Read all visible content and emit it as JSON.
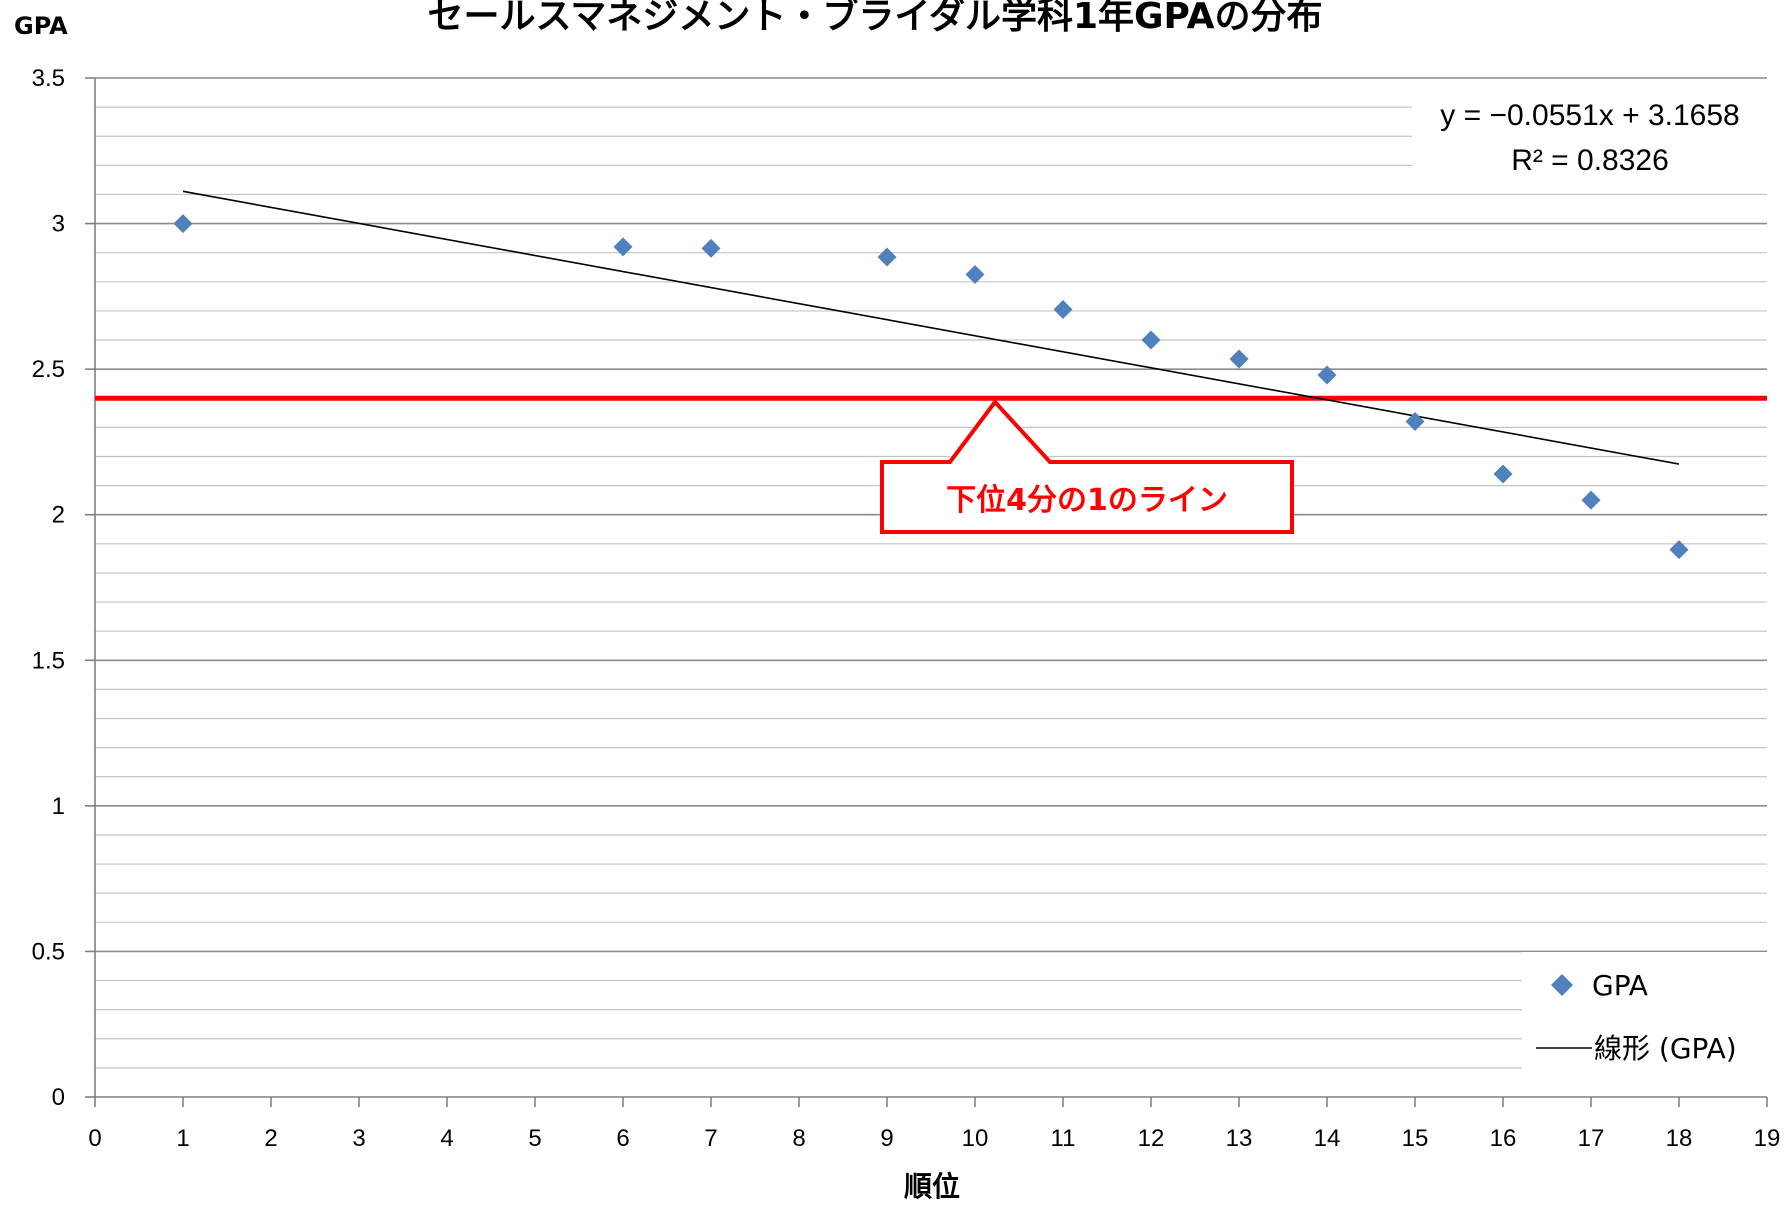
{
  "chart_data": {
    "type": "scatter",
    "title": "セールスマネジメント・ブライダル学科1年GPAの分布",
    "xlabel": "順位",
    "ylabel": "GPA",
    "xlim": [
      0,
      19
    ],
    "ylim": [
      0,
      3.5
    ],
    "x_ticks": [
      "0",
      "1",
      "2",
      "3",
      "4",
      "5",
      "6",
      "7",
      "8",
      "9",
      "10",
      "11",
      "12",
      "13",
      "14",
      "15",
      "16",
      "17",
      "18",
      "19"
    ],
    "y_ticks": [
      "0",
      "0.5",
      "1",
      "1.5",
      "2",
      "2.5",
      "3",
      "3.5"
    ],
    "grid": true,
    "series": [
      {
        "name": "GPA",
        "marker": "diamond",
        "color": "#4f81bd",
        "x": [
          1,
          6,
          7,
          9,
          10,
          11,
          12,
          13,
          14,
          15,
          16,
          17,
          18
        ],
        "y": [
          3.0,
          2.92,
          2.915,
          2.885,
          2.825,
          2.705,
          2.6,
          2.535,
          2.48,
          2.32,
          2.14,
          2.05,
          1.88
        ]
      }
    ],
    "trendline": {
      "name": "線形 (GPA)",
      "type": "linear",
      "slope": -0.0551,
      "intercept": 3.1658,
      "x_range": [
        1,
        18
      ],
      "color": "#000000",
      "equation_label": "y = −0.0551x + 3.1658",
      "r2_label": "R² = 0.8326"
    },
    "reference_line": {
      "y": 2.4,
      "color": "#ff0000",
      "label": "下位4分の1のライン"
    },
    "legend": {
      "placement": "bottom-right",
      "entries": [
        "GPA",
        "線形 (GPA)"
      ]
    }
  }
}
